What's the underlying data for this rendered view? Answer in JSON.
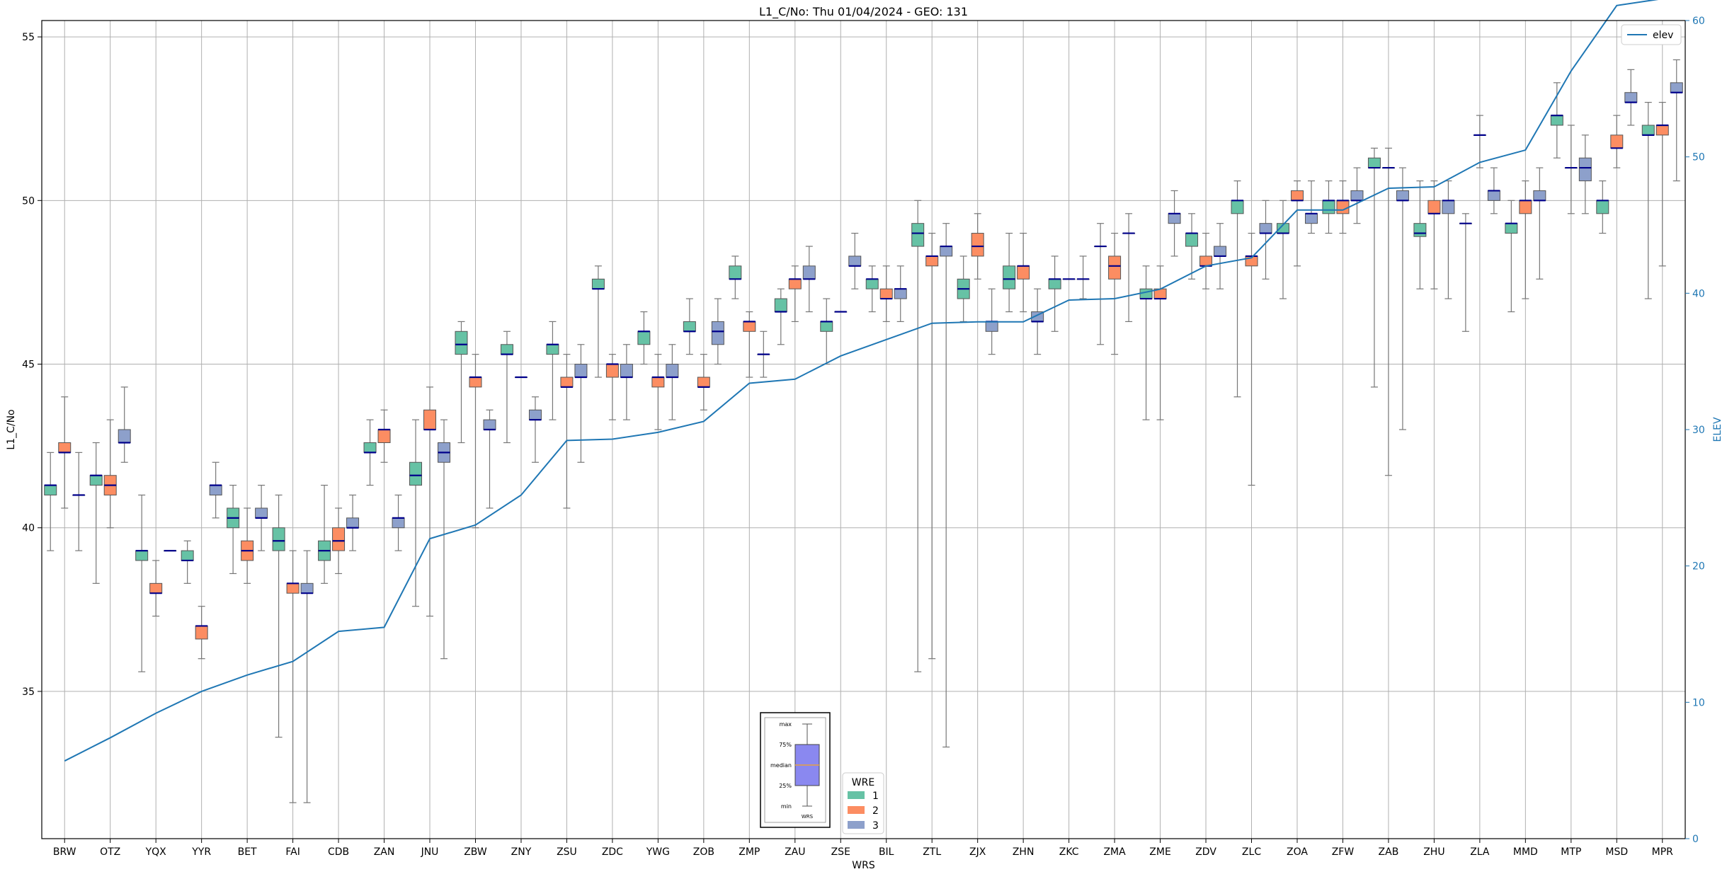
{
  "chart_data": {
    "type": "boxplot",
    "title": "L1_C/No: Thu 01/04/2024 - GEO: 131",
    "xlabel": "WRS",
    "ylabel": "L1_C/No",
    "y2label": "ELEV",
    "ylim": [
      30.5,
      55.5
    ],
    "y2lim": [
      0,
      60
    ],
    "yticks": [
      35,
      40,
      45,
      50,
      55
    ],
    "y2ticks": [
      0,
      10,
      20,
      30,
      40,
      50,
      60
    ],
    "grid": true,
    "categories": [
      "BRW",
      "OTZ",
      "YQX",
      "YYR",
      "BET",
      "FAI",
      "CDB",
      "ZAN",
      "JNU",
      "ZBW",
      "ZNY",
      "ZSU",
      "ZDC",
      "YWG",
      "ZOB",
      "ZMP",
      "ZAU",
      "ZSE",
      "BIL",
      "ZTL",
      "ZJX",
      "ZHN",
      "ZKC",
      "ZMA",
      "ZME",
      "ZDV",
      "ZLC",
      "ZOA",
      "ZFW",
      "ZAB",
      "ZHU",
      "ZLA",
      "MMD",
      "MTP",
      "MSD",
      "MPR"
    ],
    "legend": {
      "title": "WRE",
      "placement": "bottom-center",
      "entries": [
        {
          "label": "1",
          "color": "#66c2a5"
        },
        {
          "label": "2",
          "color": "#fc8d62"
        },
        {
          "label": "3",
          "color": "#8da0cb"
        }
      ]
    },
    "line_legend": {
      "label": "elev",
      "color": "#1f77b4",
      "placement": "top-right"
    },
    "key_box": {
      "labels": [
        "max",
        "75%",
        "median",
        "25%",
        "min"
      ],
      "caption": "WRS",
      "color": "#8a88f0"
    },
    "series": [
      {
        "name": "1",
        "color": "#66c2a5",
        "boxes": [
          [
            39.3,
            41.0,
            41.3,
            41.3,
            42.3
          ],
          [
            38.3,
            41.3,
            41.6,
            41.6,
            42.6
          ],
          [
            35.6,
            39.0,
            39.3,
            39.3,
            41.0
          ],
          [
            38.3,
            39.0,
            39.0,
            39.3,
            39.6
          ],
          [
            38.6,
            40.0,
            40.3,
            40.6,
            41.3
          ],
          [
            33.6,
            39.3,
            39.6,
            40.0,
            41.0
          ],
          [
            38.3,
            39.0,
            39.3,
            39.6,
            41.3
          ],
          [
            41.3,
            42.3,
            42.3,
            42.6,
            43.3
          ],
          [
            37.6,
            41.3,
            41.6,
            42.0,
            43.3
          ],
          [
            42.6,
            45.3,
            45.6,
            46.0,
            46.3
          ],
          [
            42.6,
            45.3,
            45.3,
            45.6,
            46.0
          ],
          [
            43.3,
            45.3,
            45.6,
            45.6,
            46.3
          ],
          [
            44.6,
            47.3,
            47.3,
            47.6,
            48.0
          ],
          [
            45.0,
            45.6,
            46.0,
            46.0,
            46.6
          ],
          [
            45.3,
            46.0,
            46.0,
            46.3,
            47.0
          ],
          [
            47.0,
            47.6,
            47.6,
            48.0,
            48.3
          ],
          [
            45.6,
            46.6,
            46.6,
            47.0,
            47.3
          ],
          [
            45.0,
            46.0,
            46.3,
            46.3,
            47.0
          ],
          [
            46.6,
            47.3,
            47.6,
            47.6,
            48.0
          ],
          [
            35.6,
            48.6,
            49.0,
            49.3,
            50.0
          ],
          [
            46.3,
            47.0,
            47.3,
            47.6,
            48.3
          ],
          [
            46.6,
            47.3,
            47.6,
            48.0,
            49.0
          ],
          [
            46.0,
            47.3,
            47.6,
            47.6,
            48.3
          ],
          [
            45.6,
            48.6,
            48.6,
            48.6,
            49.3
          ],
          [
            43.3,
            47.0,
            47.0,
            47.3,
            48.0
          ],
          [
            47.6,
            48.6,
            49.0,
            49.0,
            49.6
          ],
          [
            44.0,
            49.6,
            50.0,
            50.0,
            50.6
          ],
          [
            47.0,
            49.0,
            49.0,
            49.3,
            50.0
          ],
          [
            49.0,
            49.6,
            50.0,
            50.0,
            50.6
          ],
          [
            44.3,
            51.0,
            51.0,
            51.3,
            51.6
          ],
          [
            47.3,
            48.9,
            49.0,
            49.3,
            50.6
          ],
          [
            46.0,
            49.3,
            49.3,
            49.3,
            49.6
          ],
          [
            46.6,
            49.0,
            49.3,
            49.3,
            50.0
          ],
          [
            51.3,
            52.3,
            52.6,
            52.6,
            53.6
          ],
          [
            49.0,
            49.6,
            50.0,
            50.0,
            50.6
          ],
          [
            47.0,
            52.0,
            52.0,
            52.3,
            53.0
          ]
        ]
      },
      {
        "name": "2",
        "color": "#fc8d62",
        "boxes": [
          [
            40.6,
            42.3,
            42.3,
            42.6,
            44.0
          ],
          [
            40.0,
            41.0,
            41.3,
            41.6,
            43.3
          ],
          [
            37.3,
            38.0,
            38.0,
            38.3,
            39.0
          ],
          [
            36.0,
            36.6,
            37.0,
            37.0,
            37.6
          ],
          [
            38.3,
            39.0,
            39.3,
            39.6,
            40.6
          ],
          [
            31.6,
            38.0,
            38.3,
            38.3,
            39.3
          ],
          [
            38.6,
            39.3,
            39.6,
            40.0,
            40.6
          ],
          [
            42.0,
            42.6,
            43.0,
            43.0,
            43.6
          ],
          [
            37.3,
            43.0,
            43.0,
            43.6,
            44.3
          ],
          [
            40.0,
            44.3,
            44.6,
            44.6,
            45.3
          ],
          [
            44.6,
            44.6,
            44.6,
            44.6,
            44.6
          ],
          [
            40.6,
            44.3,
            44.3,
            44.6,
            45.3
          ],
          [
            43.3,
            44.6,
            45.0,
            45.0,
            45.3
          ],
          [
            43.0,
            44.3,
            44.6,
            44.6,
            45.3
          ],
          [
            43.6,
            44.3,
            44.3,
            44.6,
            45.3
          ],
          [
            44.6,
            46.0,
            46.3,
            46.3,
            46.6
          ],
          [
            46.3,
            47.3,
            47.6,
            47.6,
            48.0
          ],
          [
            46.6,
            46.6,
            46.6,
            46.6,
            46.6
          ],
          [
            46.3,
            47.0,
            47.0,
            47.3,
            48.0
          ],
          [
            36.0,
            48.0,
            48.3,
            48.3,
            49.0
          ],
          [
            47.6,
            48.3,
            48.6,
            49.0,
            49.6
          ],
          [
            46.6,
            47.6,
            48.0,
            48.0,
            49.0
          ],
          [
            47.6,
            47.6,
            47.6,
            47.6,
            47.6
          ],
          [
            45.3,
            47.6,
            48.0,
            48.3,
            49.0
          ],
          [
            43.3,
            47.0,
            47.0,
            47.3,
            48.0
          ],
          [
            47.3,
            48.0,
            48.0,
            48.3,
            49.0
          ],
          [
            41.3,
            48.0,
            48.3,
            48.3,
            49.0
          ],
          [
            48.0,
            50.0,
            50.0,
            50.3,
            50.6
          ],
          [
            49.0,
            49.6,
            50.0,
            50.0,
            50.6
          ],
          [
            41.6,
            51.0,
            51.0,
            51.0,
            51.6
          ],
          [
            47.3,
            49.6,
            49.6,
            50.0,
            50.6
          ],
          [
            51.0,
            52.0,
            52.0,
            52.0,
            52.6
          ],
          [
            47.0,
            49.6,
            50.0,
            50.0,
            50.6
          ],
          [
            49.6,
            51.0,
            51.0,
            51.0,
            52.3
          ],
          [
            51.0,
            51.6,
            51.6,
            52.0,
            52.6
          ],
          [
            48.0,
            52.0,
            52.3,
            52.3,
            53.0
          ]
        ]
      },
      {
        "name": "3",
        "color": "#8da0cb",
        "boxes": [
          [
            39.3,
            41.0,
            41.0,
            41.0,
            42.3
          ],
          [
            42.0,
            42.6,
            42.6,
            43.0,
            44.3
          ],
          [
            39.3,
            39.3,
            39.3,
            39.3,
            39.3
          ],
          [
            40.3,
            41.0,
            41.3,
            41.3,
            42.0
          ],
          [
            39.3,
            40.3,
            40.3,
            40.6,
            41.3
          ],
          [
            31.6,
            38.0,
            38.0,
            38.3,
            39.3
          ],
          [
            39.3,
            40.0,
            40.0,
            40.3,
            41.0
          ],
          [
            39.3,
            40.0,
            40.3,
            40.3,
            41.0
          ],
          [
            36.0,
            42.0,
            42.3,
            42.6,
            43.3
          ],
          [
            40.6,
            43.0,
            43.0,
            43.3,
            43.6
          ],
          [
            42.0,
            43.3,
            43.3,
            43.6,
            44.0
          ],
          [
            42.0,
            44.6,
            44.6,
            45.0,
            45.6
          ],
          [
            43.3,
            44.6,
            44.6,
            45.0,
            45.6
          ],
          [
            43.3,
            44.6,
            44.6,
            45.0,
            45.6
          ],
          [
            45.0,
            45.6,
            46.0,
            46.3,
            47.0
          ],
          [
            44.6,
            45.3,
            45.3,
            45.3,
            46.0
          ],
          [
            46.6,
            47.6,
            47.6,
            48.0,
            48.6
          ],
          [
            47.3,
            48.0,
            48.0,
            48.3,
            49.0
          ],
          [
            46.3,
            47.0,
            47.3,
            47.3,
            48.0
          ],
          [
            33.3,
            48.3,
            48.6,
            48.6,
            49.3
          ],
          [
            45.3,
            46.0,
            46.3,
            46.3,
            47.3
          ],
          [
            45.3,
            46.3,
            46.3,
            46.6,
            47.3
          ],
          [
            47.0,
            47.6,
            47.6,
            47.6,
            48.3
          ],
          [
            46.3,
            49.0,
            49.0,
            49.0,
            49.6
          ],
          [
            48.3,
            49.3,
            49.6,
            49.6,
            50.3
          ],
          [
            47.3,
            48.3,
            48.3,
            48.6,
            49.3
          ],
          [
            47.6,
            49.0,
            49.0,
            49.3,
            50.0
          ],
          [
            49.0,
            49.3,
            49.6,
            49.6,
            50.6
          ],
          [
            49.3,
            50.0,
            50.0,
            50.3,
            51.0
          ],
          [
            43.0,
            50.0,
            50.0,
            50.3,
            51.0
          ],
          [
            47.0,
            49.6,
            50.0,
            50.0,
            50.6
          ],
          [
            49.6,
            50.0,
            50.3,
            50.3,
            51.0
          ],
          [
            47.6,
            50.0,
            50.0,
            50.3,
            51.0
          ],
          [
            49.6,
            50.6,
            51.0,
            51.3,
            52.0
          ],
          [
            52.3,
            53.0,
            53.0,
            53.3,
            54.0
          ],
          [
            50.6,
            53.3,
            53.3,
            53.6,
            54.3
          ]
        ]
      }
    ],
    "elev": [
      5.7,
      7.4,
      9.2,
      10.8,
      12.0,
      13.0,
      15.2,
      15.5,
      22.0,
      23.0,
      25.2,
      29.2,
      29.3,
      29.8,
      30.6,
      33.4,
      33.7,
      35.4,
      36.6,
      37.8,
      37.9,
      37.9,
      39.5,
      39.6,
      40.3,
      42.0,
      42.6,
      46.1,
      46.1,
      47.7,
      47.8,
      49.6,
      50.5,
      56.3,
      61.1,
      61.6
    ]
  }
}
